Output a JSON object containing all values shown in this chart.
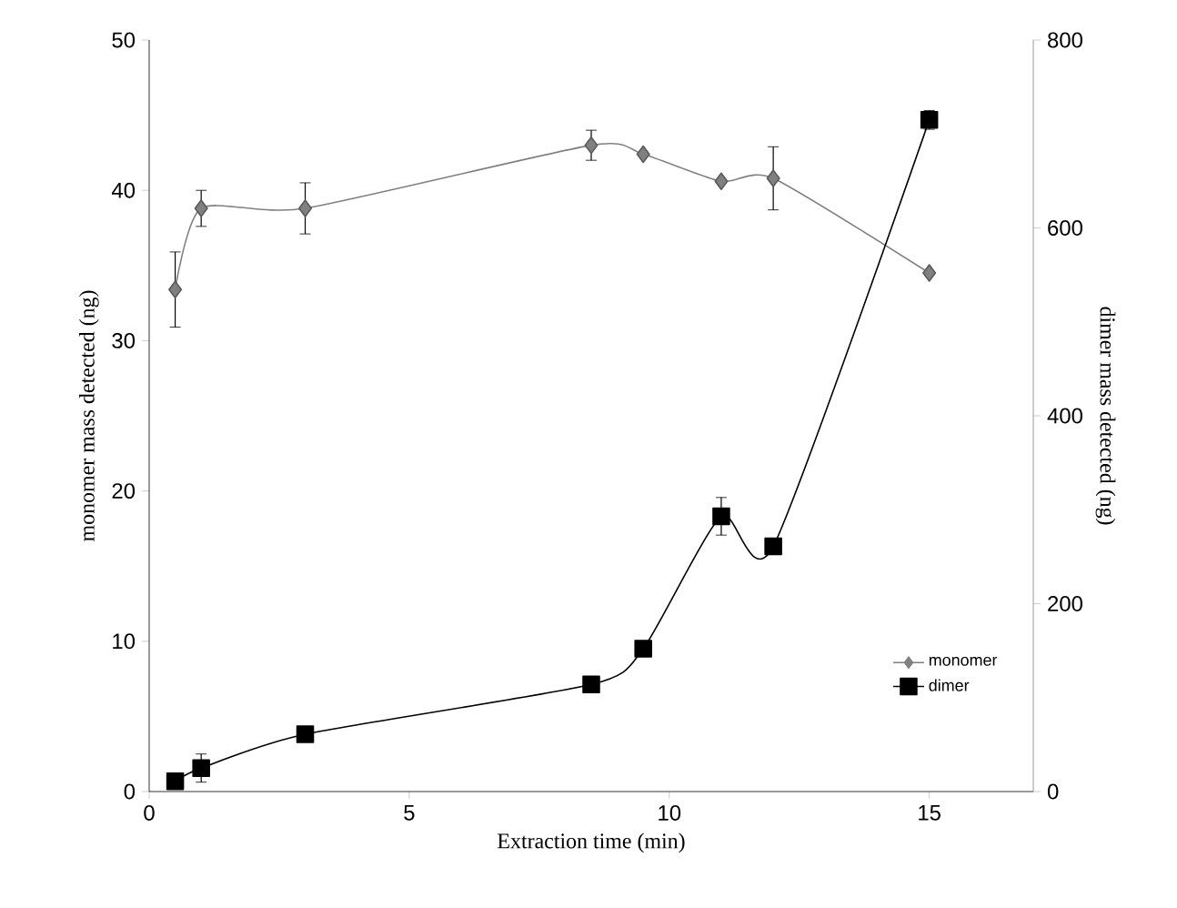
{
  "chart_data": {
    "type": "line",
    "xlabel": "Extraction time (min)",
    "ylabel": "monomer mass detected (ng)",
    "y2label": "dimer mass detected (ng)",
    "x": [
      0.5,
      1,
      3,
      8.5,
      9.5,
      11,
      12,
      15
    ],
    "series": [
      {
        "name": "monomer",
        "color": "#808080",
        "marker": "diamond",
        "values": [
          33.4,
          38.8,
          38.8,
          43.0,
          42.4,
          40.6,
          40.8,
          34.5
        ],
        "errors": [
          2.5,
          1.2,
          1.7,
          1.0,
          null,
          null,
          2.1,
          null
        ]
      },
      {
        "name": "dimer",
        "color": "#000000",
        "marker": "square",
        "axis": "y2",
        "values": [
          11,
          25,
          61,
          114,
          152,
          293,
          261,
          715
        ],
        "errors": [
          null,
          15,
          null,
          null,
          null,
          20,
          null,
          10
        ]
      }
    ],
    "xlim": [
      0,
      17
    ],
    "xticks": [
      0,
      5,
      10,
      15
    ],
    "ylim": [
      0,
      50
    ],
    "yticks": [
      0,
      10,
      20,
      30,
      40,
      50
    ],
    "y2lim": [
      0,
      800
    ],
    "y2ticks": [
      0,
      200,
      400,
      600,
      800
    ],
    "legend": "bottom right",
    "grid": false
  }
}
